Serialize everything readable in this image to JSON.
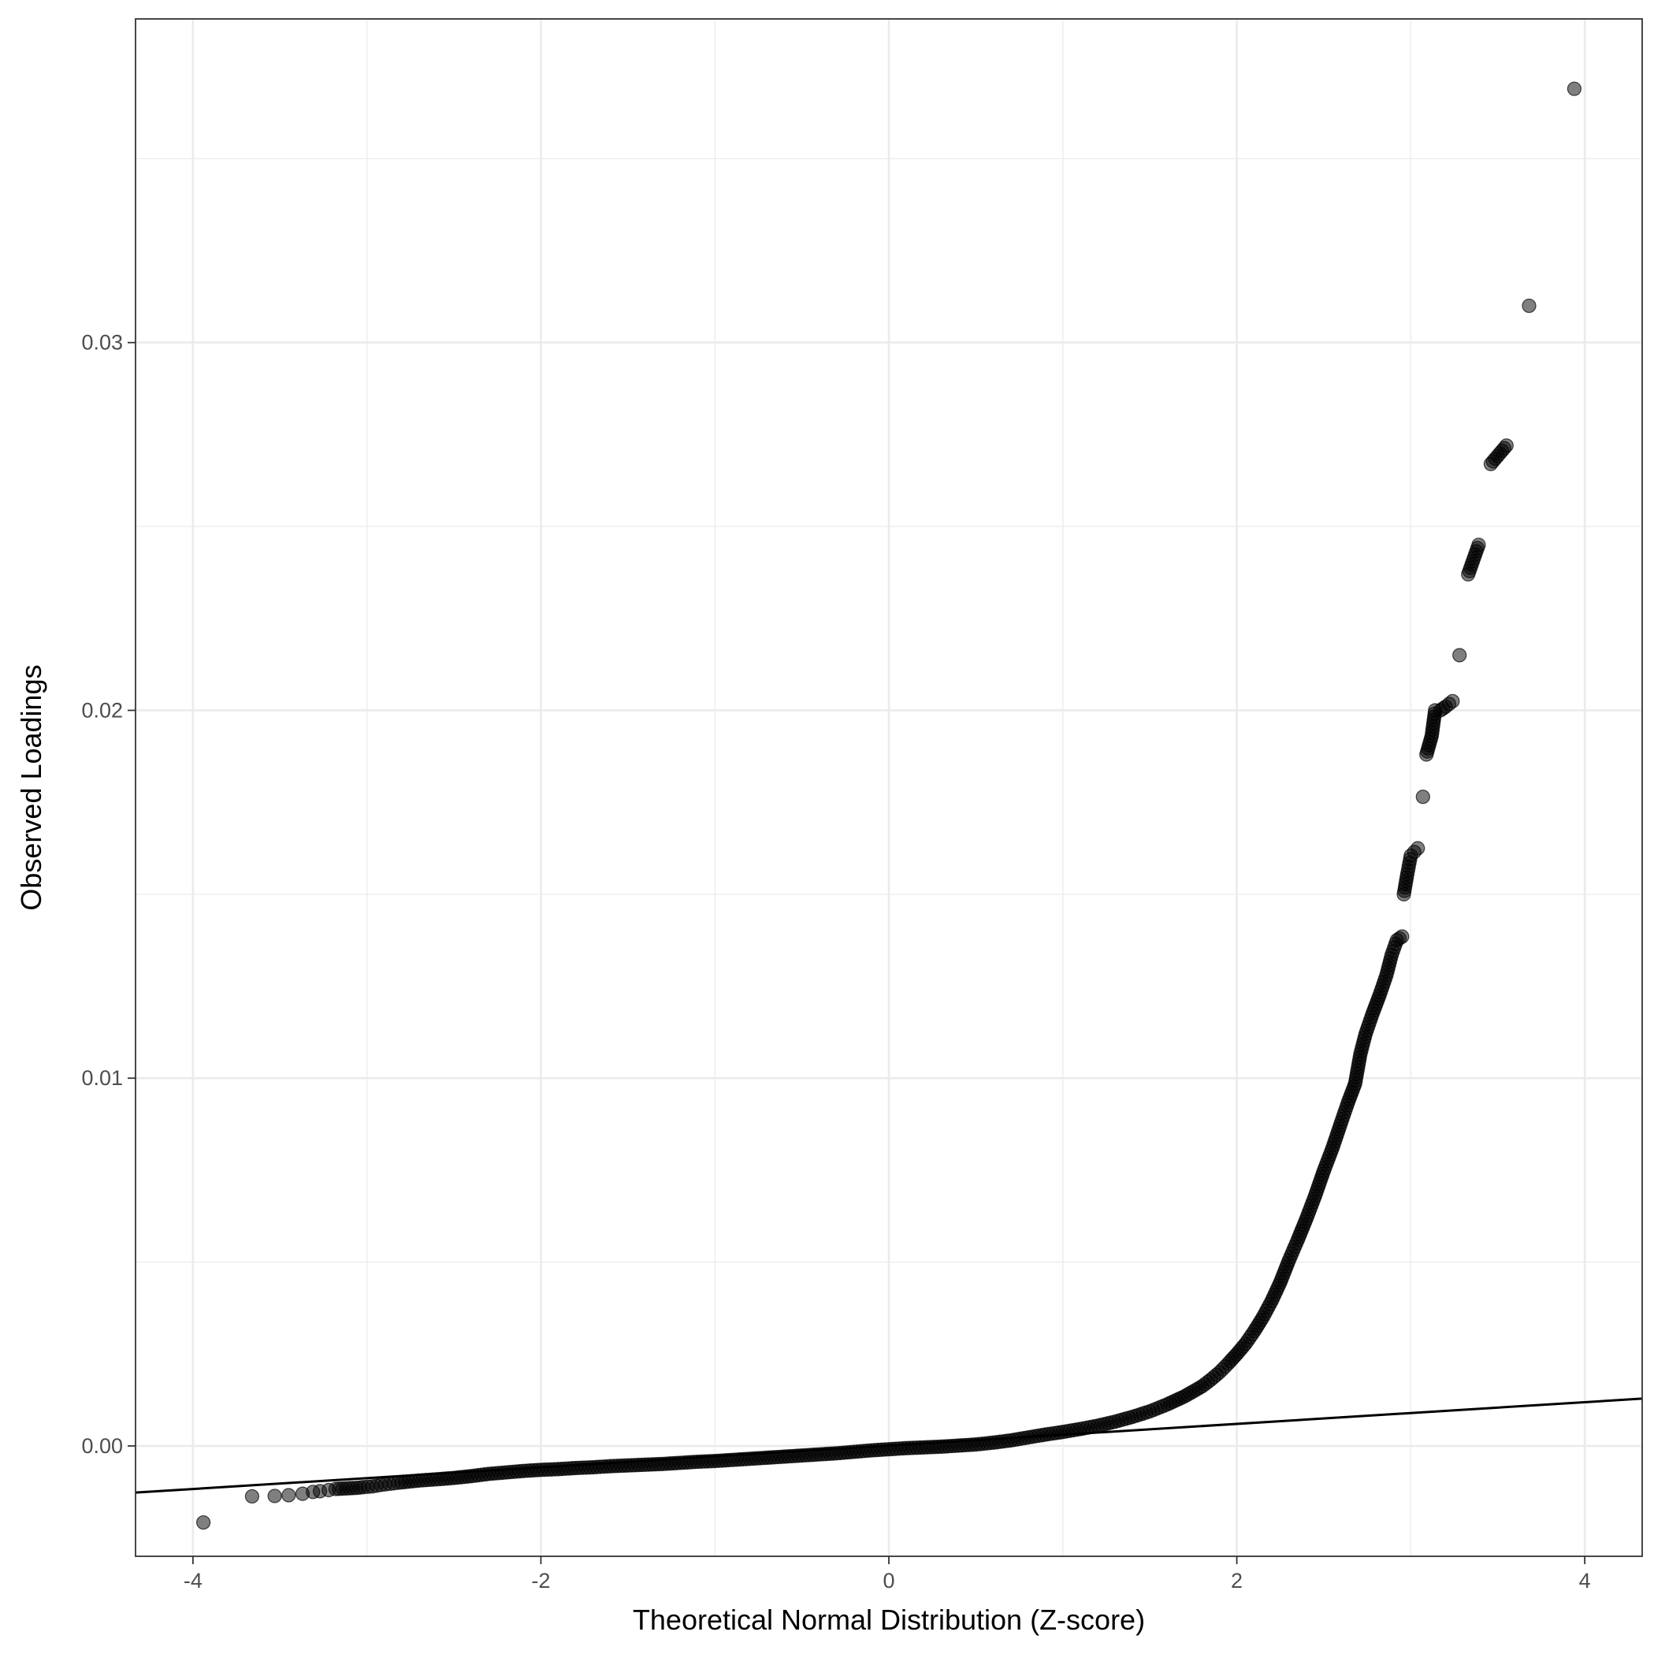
{
  "chart_data": {
    "type": "scatter",
    "title": "",
    "xlabel": "Theoretical Normal Distribution (Z-score)",
    "ylabel": "Observed Loadings",
    "xlim": [
      -4.33,
      4.33
    ],
    "ylim": [
      -0.003,
      0.0388
    ],
    "x_ticks": [
      -4,
      -2,
      0,
      2,
      4
    ],
    "x_tick_labels": [
      "-4",
      "-2",
      "0",
      "2",
      "4"
    ],
    "y_ticks": [
      0.0,
      0.01,
      0.02,
      0.03
    ],
    "y_tick_labels": [
      "0.00",
      "0.01",
      "0.02",
      "0.03"
    ],
    "x_minor_ticks": [
      -3,
      -1,
      1,
      3
    ],
    "y_minor_ticks": [
      0.005,
      0.015,
      0.025,
      0.035
    ],
    "grid": true,
    "legend": "none",
    "point_color": "#000000",
    "point_opacity": 0.5,
    "reference_line": {
      "intercept": 1e-05,
      "slope": 0.000295,
      "color": "#000000"
    },
    "points": [
      [
        -3.94,
        -0.00208
      ],
      [
        -3.66,
        -0.00137
      ],
      [
        -3.53,
        -0.00136
      ],
      [
        -3.45,
        -0.00134
      ],
      [
        -3.37,
        -0.0013
      ],
      [
        -3.31,
        -0.00125
      ],
      [
        -3.27,
        -0.00123
      ],
      [
        -3.22,
        -0.0012
      ],
      [
        -3.18,
        -0.00117
      ],
      [
        -3.14,
        -0.00116
      ],
      [
        -3.1,
        -0.00115
      ],
      [
        -3.06,
        -0.00114
      ],
      [
        -3.02,
        -0.00112
      ],
      [
        -2.97,
        -0.0011
      ],
      [
        -2.92,
        -0.00106
      ],
      [
        -2.87,
        -0.00103
      ],
      [
        -2.82,
        -0.001
      ],
      [
        -2.76,
        -0.00097
      ],
      [
        -2.7,
        -0.00094
      ],
      [
        -2.64,
        -0.00092
      ],
      [
        -2.58,
        -0.0009
      ],
      [
        -2.5,
        -0.00087
      ],
      [
        -2.4,
        -0.00082
      ],
      [
        -2.3,
        -0.00076
      ],
      [
        -2.2,
        -0.00072
      ],
      [
        -2.1,
        -0.00068
      ],
      [
        -2.0,
        -0.00065
      ],
      [
        -1.9,
        -0.00063
      ],
      [
        -1.8,
        -0.0006
      ],
      [
        -1.7,
        -0.00058
      ],
      [
        -1.6,
        -0.00055
      ],
      [
        -1.5,
        -0.00053
      ],
      [
        -1.4,
        -0.00051
      ],
      [
        -1.3,
        -0.00049
      ],
      [
        -1.2,
        -0.00046
      ],
      [
        -1.1,
        -0.00043
      ],
      [
        -1.0,
        -0.00041
      ],
      [
        -0.9,
        -0.00038
      ],
      [
        -0.8,
        -0.00035
      ],
      [
        -0.7,
        -0.00032
      ],
      [
        -0.6,
        -0.00029
      ],
      [
        -0.5,
        -0.00026
      ],
      [
        -0.4,
        -0.00023
      ],
      [
        -0.3,
        -0.0002
      ],
      [
        -0.2,
        -0.00016
      ],
      [
        -0.1,
        -0.00012
      ],
      [
        0.0,
        -9e-05
      ],
      [
        0.1,
        -6e-05
      ],
      [
        0.2,
        -4e-05
      ],
      [
        0.3,
        -2e-05
      ],
      [
        0.4,
        1e-05
      ],
      [
        0.5,
        4e-05
      ],
      [
        0.6,
        9e-05
      ],
      [
        0.7,
        0.00015
      ],
      [
        0.8,
        0.00023
      ],
      [
        0.9,
        0.00031
      ],
      [
        1.0,
        0.00038
      ],
      [
        1.1,
        0.00046
      ],
      [
        1.2,
        0.00055
      ],
      [
        1.3,
        0.00066
      ],
      [
        1.4,
        0.00079
      ],
      [
        1.5,
        0.00094
      ],
      [
        1.6,
        0.00113
      ],
      [
        1.7,
        0.00135
      ],
      [
        1.8,
        0.00162
      ],
      [
        1.85,
        0.0018
      ],
      [
        1.9,
        0.002
      ],
      [
        1.95,
        0.00224
      ],
      [
        2.0,
        0.0025
      ],
      [
        2.05,
        0.00278
      ],
      [
        2.1,
        0.00312
      ],
      [
        2.15,
        0.0035
      ],
      [
        2.2,
        0.00394
      ],
      [
        2.25,
        0.00445
      ],
      [
        2.3,
        0.00505
      ],
      [
        2.35,
        0.0056
      ],
      [
        2.4,
        0.00618
      ],
      [
        2.45,
        0.0068
      ],
      [
        2.5,
        0.00748
      ],
      [
        2.55,
        0.0081
      ],
      [
        2.6,
        0.0088
      ],
      [
        2.64,
        0.00935
      ],
      [
        2.68,
        0.00985
      ],
      [
        2.71,
        0.01065
      ],
      [
        2.74,
        0.0112
      ],
      [
        2.78,
        0.01175
      ],
      [
        2.82,
        0.01225
      ],
      [
        2.86,
        0.0128
      ],
      [
        2.89,
        0.01335
      ],
      [
        2.92,
        0.01375
      ],
      [
        2.95,
        0.01385
      ],
      [
        2.96,
        0.015
      ],
      [
        2.98,
        0.01555
      ],
      [
        3.0,
        0.01605
      ],
      [
        3.02,
        0.01615
      ],
      [
        3.04,
        0.01625
      ],
      [
        3.07,
        0.01765
      ],
      [
        3.09,
        0.0188
      ],
      [
        3.12,
        0.0193
      ],
      [
        3.14,
        0.02
      ],
      [
        3.17,
        0.02
      ],
      [
        3.2,
        0.0201
      ],
      [
        3.24,
        0.02025
      ],
      [
        3.28,
        0.0215
      ],
      [
        3.33,
        0.0237
      ],
      [
        3.39,
        0.0245
      ],
      [
        3.46,
        0.0267
      ],
      [
        3.55,
        0.0272
      ],
      [
        3.68,
        0.031
      ],
      [
        3.94,
        0.0369
      ]
    ]
  }
}
